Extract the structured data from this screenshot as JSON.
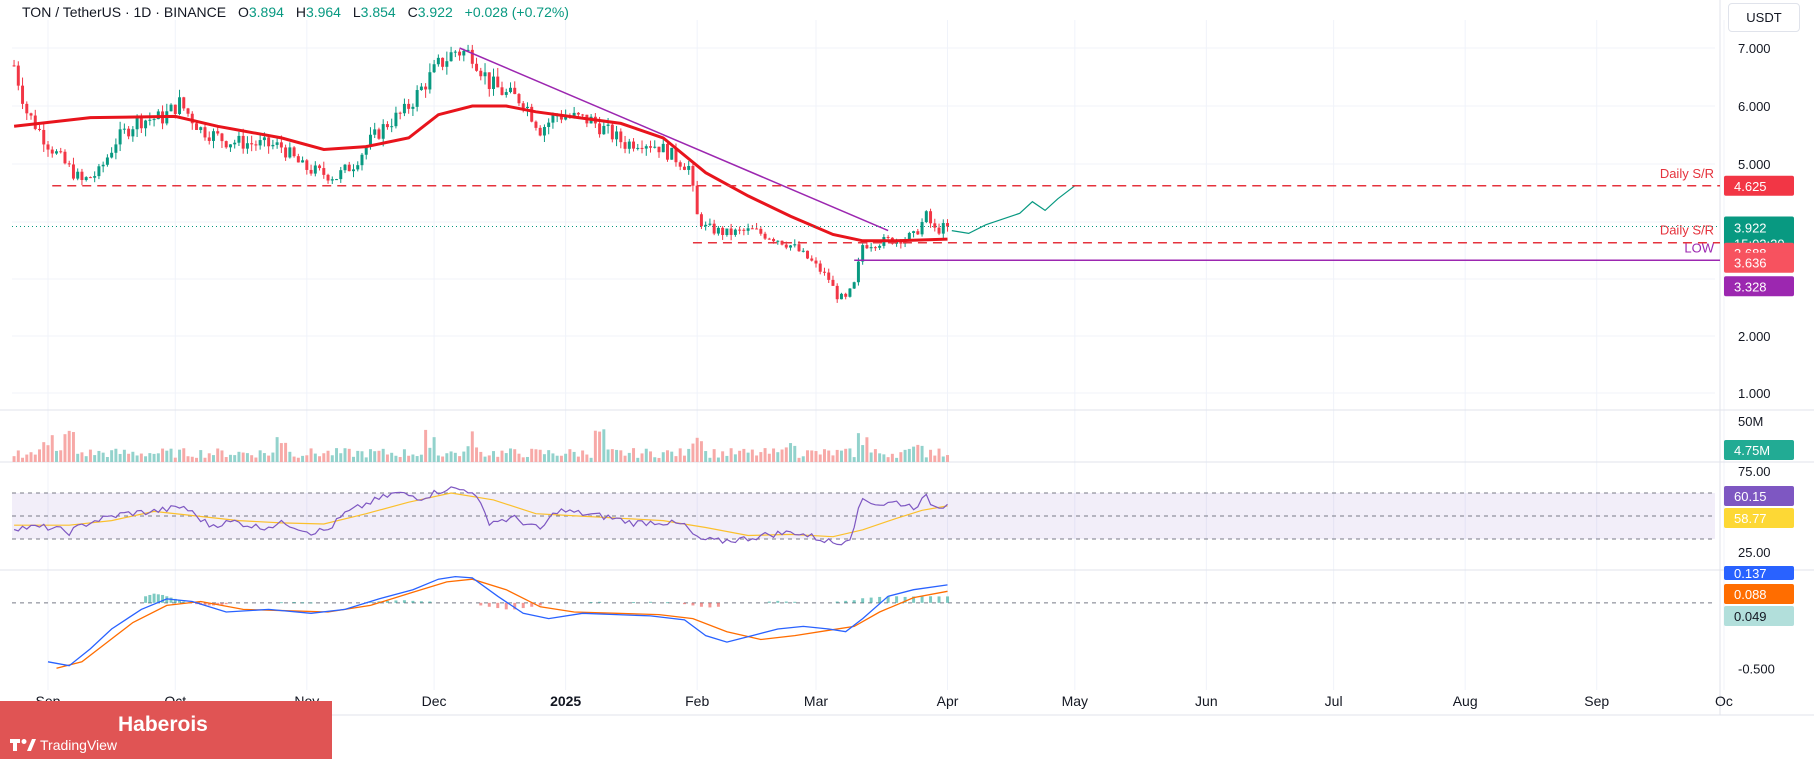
{
  "header": {
    "symbol": "TON / TetherUS · 1D · BINANCE",
    "o_label": "O",
    "o_value": "3.894",
    "h_label": "H",
    "h_value": "3.964",
    "l_label": "L",
    "l_value": "3.854",
    "c_label": "C",
    "c_value": "3.922",
    "change": "+0.028 (+0.72%)"
  },
  "unit_button": "USDT",
  "colors": {
    "up": "#089981",
    "down": "#f23645",
    "ma": "#e8141c",
    "trend": "#9c27b0",
    "rsi": "#7e57c2",
    "rsi_ma": "#fbc02d",
    "macd": "#2962ff",
    "signal": "#ff6d00"
  },
  "chart_data": [
    {
      "type": "candlestick",
      "y_ticks": [
        "7.000",
        "6.000",
        "5.000",
        "2.000",
        "1.000"
      ],
      "ylim": [
        0.6,
        7.4
      ],
      "x_ticks": [
        "Sep",
        "Oct",
        "Nov",
        "Dec",
        "2025",
        "Feb",
        "Mar",
        "Apr",
        "May",
        "Jun",
        "Jul",
        "Aug",
        "Sep",
        "Oc"
      ],
      "x_tick_days": [
        0,
        30,
        61,
        91,
        122,
        153,
        181,
        212,
        242,
        273,
        303,
        334,
        365,
        395
      ],
      "price_path": [
        [
          -8,
          6.7
        ],
        [
          -5,
          5.9
        ],
        [
          0,
          5.35
        ],
        [
          4,
          5.0
        ],
        [
          8,
          4.7
        ],
        [
          12,
          4.85
        ],
        [
          16,
          5.4
        ],
        [
          21,
          5.75
        ],
        [
          27,
          5.8
        ],
        [
          31,
          6.05
        ],
        [
          36,
          5.6
        ],
        [
          42,
          5.4
        ],
        [
          48,
          5.35
        ],
        [
          55,
          5.3
        ],
        [
          60,
          4.95
        ],
        [
          64,
          4.85
        ],
        [
          68,
          4.78
        ],
        [
          72,
          5.0
        ],
        [
          76,
          5.4
        ],
        [
          80,
          5.7
        ],
        [
          84,
          5.9
        ],
        [
          88,
          6.3
        ],
        [
          92,
          6.7
        ],
        [
          96,
          6.95
        ],
        [
          100,
          6.9
        ],
        [
          104,
          6.4
        ],
        [
          108,
          6.2
        ],
        [
          112,
          6.1
        ],
        [
          116,
          5.6
        ],
        [
          120,
          5.85
        ],
        [
          124,
          5.8
        ],
        [
          128,
          5.75
        ],
        [
          132,
          5.55
        ],
        [
          136,
          5.35
        ],
        [
          140,
          5.4
        ],
        [
          144,
          5.3
        ],
        [
          148,
          5.1
        ],
        [
          151,
          4.95
        ],
        [
          153,
          4.1
        ],
        [
          155,
          3.9
        ],
        [
          160,
          3.8
        ],
        [
          166,
          3.85
        ],
        [
          172,
          3.7
        ],
        [
          176,
          3.55
        ],
        [
          180,
          3.3
        ],
        [
          184,
          3.0
        ],
        [
          186,
          2.7
        ],
        [
          188,
          2.65
        ],
        [
          190,
          2.9
        ],
        [
          192,
          3.6
        ],
        [
          196,
          3.65
        ],
        [
          200,
          3.7
        ],
        [
          204,
          3.75
        ],
        [
          207,
          4.1
        ],
        [
          209,
          3.85
        ],
        [
          212,
          3.922
        ]
      ],
      "ma_path": [
        [
          -8,
          5.65
        ],
        [
          10,
          5.8
        ],
        [
          30,
          5.82
        ],
        [
          40,
          5.65
        ],
        [
          55,
          5.45
        ],
        [
          65,
          5.25
        ],
        [
          75,
          5.3
        ],
        [
          85,
          5.45
        ],
        [
          92,
          5.85
        ],
        [
          100,
          6.0
        ],
        [
          108,
          6.0
        ],
        [
          115,
          5.9
        ],
        [
          125,
          5.8
        ],
        [
          135,
          5.7
        ],
        [
          145,
          5.45
        ],
        [
          155,
          4.85
        ],
        [
          165,
          4.45
        ],
        [
          175,
          4.1
        ],
        [
          185,
          3.78
        ],
        [
          192,
          3.67
        ],
        [
          200,
          3.67
        ],
        [
          212,
          3.7
        ]
      ],
      "trendline": [
        [
          97,
          7.0
        ],
        [
          198,
          3.85
        ]
      ],
      "forecast_path": [
        [
          213,
          3.85
        ],
        [
          217,
          3.8
        ],
        [
          221,
          3.95
        ],
        [
          225,
          4.05
        ],
        [
          229,
          4.15
        ],
        [
          232,
          4.35
        ],
        [
          235,
          4.2
        ],
        [
          238,
          4.4
        ],
        [
          242,
          4.625
        ]
      ],
      "daily_sr_upper": {
        "label": "Daily S/R",
        "value": 4.625,
        "value_label": "4.625",
        "from_day": 1
      },
      "daily_sr_lower": {
        "label": "Daily S/R",
        "value": 3.636,
        "value_label": "3.636",
        "from_day": 152
      },
      "low_line": {
        "label": "LOW",
        "value": 3.328,
        "value_label": "3.328",
        "from_day": 190
      },
      "last_price": {
        "value": 3.922,
        "value_label": "3.922",
        "countdown": "15:02:20"
      },
      "ma_value": {
        "value": 3.688,
        "value_label": "3.688"
      }
    },
    {
      "type": "bar",
      "name": "volume",
      "tick_label": "50M",
      "current_value_label": "4.75M",
      "max_value_m": 50
    },
    {
      "type": "line",
      "name": "RSI",
      "y_ticks": [
        "75.00",
        "25.00"
      ],
      "ylim": [
        10,
        90
      ],
      "upper_band": 70,
      "middle_band": 50,
      "lower_band": 30,
      "rsi_value_label": "60.15",
      "ma_value_label": "58.77",
      "rsi_path": [
        [
          -8,
          40
        ],
        [
          0,
          40
        ],
        [
          5,
          36
        ],
        [
          10,
          45
        ],
        [
          18,
          52
        ],
        [
          25,
          54
        ],
        [
          32,
          58
        ],
        [
          38,
          42
        ],
        [
          44,
          45
        ],
        [
          50,
          40
        ],
        [
          56,
          44
        ],
        [
          62,
          36
        ],
        [
          66,
          38
        ],
        [
          70,
          52
        ],
        [
          76,
          62
        ],
        [
          82,
          70
        ],
        [
          88,
          66
        ],
        [
          94,
          74
        ],
        [
          100,
          72
        ],
        [
          104,
          45
        ],
        [
          110,
          48
        ],
        [
          116,
          38
        ],
        [
          120,
          55
        ],
        [
          126,
          52
        ],
        [
          132,
          49
        ],
        [
          138,
          44
        ],
        [
          144,
          45
        ],
        [
          150,
          42
        ],
        [
          153,
          30
        ],
        [
          158,
          28
        ],
        [
          164,
          30
        ],
        [
          170,
          34
        ],
        [
          176,
          36
        ],
        [
          182,
          30
        ],
        [
          186,
          26
        ],
        [
          189,
          32
        ],
        [
          192,
          65
        ],
        [
          196,
          60
        ],
        [
          200,
          62
        ],
        [
          204,
          58
        ],
        [
          207,
          66
        ],
        [
          209,
          58
        ],
        [
          212,
          60.15
        ]
      ],
      "rsi_ma_path": [
        [
          -8,
          42
        ],
        [
          5,
          42
        ],
        [
          15,
          46
        ],
        [
          25,
          54
        ],
        [
          35,
          50
        ],
        [
          45,
          46
        ],
        [
          55,
          44
        ],
        [
          65,
          43
        ],
        [
          75,
          52
        ],
        [
          85,
          62
        ],
        [
          95,
          70
        ],
        [
          105,
          64
        ],
        [
          115,
          52
        ],
        [
          125,
          50
        ],
        [
          135,
          48
        ],
        [
          145,
          46
        ],
        [
          155,
          40
        ],
        [
          165,
          33
        ],
        [
          175,
          34
        ],
        [
          185,
          32
        ],
        [
          192,
          38
        ],
        [
          200,
          48
        ],
        [
          206,
          55
        ],
        [
          212,
          58.77
        ]
      ]
    },
    {
      "type": "line",
      "name": "MACD",
      "y_ticks": [
        "0.137",
        "-0.500"
      ],
      "ylim": [
        -0.65,
        0.22
      ],
      "macd_value_label": "0.137",
      "signal_value_label": "0.088",
      "hist_value_label": "0.049",
      "macd_path": [
        [
          0,
          -0.45
        ],
        [
          5,
          -0.48
        ],
        [
          10,
          -0.35
        ],
        [
          15,
          -0.2
        ],
        [
          22,
          -0.05
        ],
        [
          28,
          0.03
        ],
        [
          34,
          0.01
        ],
        [
          42,
          -0.07
        ],
        [
          52,
          -0.05
        ],
        [
          62,
          -0.08
        ],
        [
          70,
          -0.05
        ],
        [
          78,
          0.03
        ],
        [
          86,
          0.1
        ],
        [
          92,
          0.18
        ],
        [
          96,
          0.2
        ],
        [
          100,
          0.19
        ],
        [
          106,
          0.05
        ],
        [
          112,
          -0.08
        ],
        [
          118,
          -0.12
        ],
        [
          126,
          -0.08
        ],
        [
          134,
          -0.09
        ],
        [
          142,
          -0.1
        ],
        [
          150,
          -0.13
        ],
        [
          155,
          -0.25
        ],
        [
          160,
          -0.3
        ],
        [
          166,
          -0.25
        ],
        [
          172,
          -0.2
        ],
        [
          178,
          -0.18
        ],
        [
          184,
          -0.2
        ],
        [
          188,
          -0.22
        ],
        [
          192,
          -0.12
        ],
        [
          198,
          0.05
        ],
        [
          204,
          0.1
        ],
        [
          212,
          0.137
        ]
      ],
      "signal_path": [
        [
          2,
          -0.5
        ],
        [
          8,
          -0.45
        ],
        [
          14,
          -0.3
        ],
        [
          20,
          -0.15
        ],
        [
          28,
          -0.02
        ],
        [
          36,
          0.01
        ],
        [
          46,
          -0.05
        ],
        [
          56,
          -0.06
        ],
        [
          66,
          -0.07
        ],
        [
          76,
          -0.02
        ],
        [
          86,
          0.08
        ],
        [
          94,
          0.16
        ],
        [
          100,
          0.18
        ],
        [
          108,
          0.1
        ],
        [
          116,
          -0.03
        ],
        [
          124,
          -0.07
        ],
        [
          134,
          -0.08
        ],
        [
          144,
          -0.09
        ],
        [
          152,
          -0.12
        ],
        [
          160,
          -0.22
        ],
        [
          168,
          -0.28
        ],
        [
          176,
          -0.25
        ],
        [
          184,
          -0.21
        ],
        [
          190,
          -0.18
        ],
        [
          196,
          -0.07
        ],
        [
          204,
          0.04
        ],
        [
          212,
          0.088
        ]
      ],
      "hist": [
        [
          23,
          0.05
        ],
        [
          24,
          0.06
        ],
        [
          25,
          0.07
        ],
        [
          26,
          0.065
        ],
        [
          27,
          0.06
        ],
        [
          28,
          0.05
        ],
        [
          29,
          0.04
        ],
        [
          30,
          0.03
        ],
        [
          31,
          0.02
        ],
        [
          32,
          0.01
        ],
        [
          35,
          -0.01
        ],
        [
          36,
          -0.015
        ],
        [
          37,
          -0.02
        ],
        [
          38,
          -0.02
        ],
        [
          39,
          -0.02
        ],
        [
          40,
          -0.015
        ],
        [
          41,
          -0.015
        ],
        [
          42,
          -0.01
        ],
        [
          55,
          0.005
        ],
        [
          58,
          0.006
        ],
        [
          60,
          0.004
        ],
        [
          62,
          0.003
        ],
        [
          76,
          0.008
        ],
        [
          78,
          0.012
        ],
        [
          80,
          0.015
        ],
        [
          82,
          0.018
        ],
        [
          84,
          0.02
        ],
        [
          86,
          0.015
        ],
        [
          88,
          0.012
        ],
        [
          90,
          0.01
        ],
        [
          102,
          -0.02
        ],
        [
          104,
          -0.03
        ],
        [
          106,
          -0.04
        ],
        [
          108,
          -0.05
        ],
        [
          110,
          -0.05
        ],
        [
          112,
          -0.04
        ],
        [
          114,
          -0.03
        ],
        [
          116,
          -0.02
        ],
        [
          128,
          0.006
        ],
        [
          130,
          0.008
        ],
        [
          138,
          0.006
        ],
        [
          142,
          0.008
        ],
        [
          146,
          0.005
        ],
        [
          150,
          -0.01
        ],
        [
          152,
          -0.02
        ],
        [
          154,
          -0.03
        ],
        [
          156,
          -0.035
        ],
        [
          158,
          -0.03
        ],
        [
          170,
          0.01
        ],
        [
          172,
          0.015
        ],
        [
          174,
          0.01
        ],
        [
          176,
          0.008
        ],
        [
          186,
          0.01
        ],
        [
          188,
          0.015
        ],
        [
          190,
          0.02
        ],
        [
          192,
          0.035
        ],
        [
          194,
          0.04
        ],
        [
          196,
          0.045
        ],
        [
          198,
          0.05
        ],
        [
          200,
          0.05
        ],
        [
          202,
          0.045
        ],
        [
          204,
          0.048
        ],
        [
          206,
          0.05
        ],
        [
          208,
          0.05
        ],
        [
          210,
          0.049
        ],
        [
          212,
          0.049
        ]
      ]
    }
  ],
  "watermark": {
    "brand": "Haberois",
    "platform": "TradingView"
  }
}
